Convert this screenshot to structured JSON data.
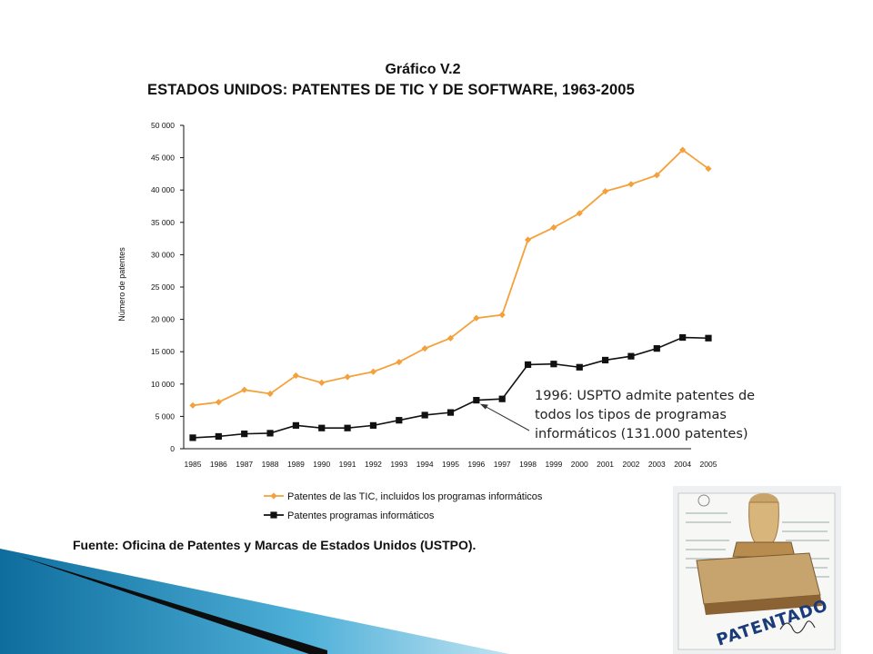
{
  "chart_data": {
    "type": "line",
    "title": "Gráfico V.2",
    "subtitle": "ESTADOS UNIDOS: PATENTES DE TIC Y DE SOFTWARE, 1963-2005",
    "ylabel": "Número de patentes",
    "xlabel": "",
    "ylim": [
      0,
      50000
    ],
    "yticks": [
      0,
      5000,
      10000,
      15000,
      20000,
      25000,
      30000,
      35000,
      40000,
      45000,
      50000
    ],
    "ytick_labels": [
      "0",
      "5 000",
      "10 000",
      "15 000",
      "20 000",
      "25 000",
      "30 000",
      "35 000",
      "40 000",
      "45 000",
      "50 000"
    ],
    "categories": [
      "1985",
      "1986",
      "1987",
      "1988",
      "1989",
      "1990",
      "1991",
      "1992",
      "1993",
      "1994",
      "1995",
      "1996",
      "1997",
      "1998",
      "1999",
      "2000",
      "2001",
      "2002",
      "2003",
      "2004",
      "2005"
    ],
    "series": [
      {
        "name": "Patentes de las TIC, incluidos los programas informáticos",
        "color": "#f4a13b",
        "marker": "diamond",
        "values": [
          6700,
          7200,
          9100,
          8500,
          11300,
          10200,
          11100,
          11900,
          13400,
          15500,
          17100,
          20200,
          20700,
          32300,
          34200,
          36400,
          39800,
          40900,
          42300,
          46200,
          43300
        ]
      },
      {
        "name": "Patentes programas informáticos",
        "color": "#111111",
        "marker": "square",
        "values": [
          1700,
          1900,
          2300,
          2400,
          3600,
          3200,
          3200,
          3600,
          4400,
          5200,
          5600,
          7500,
          7700,
          13000,
          13100,
          12600,
          13700,
          14300,
          15500,
          17200,
          17100
        ]
      }
    ],
    "grid": false,
    "legend_position": "bottom"
  },
  "annotation": {
    "text": "1996: USPTO admite patentes de todos los tipos de programas informáticos (131.000 patentes)"
  },
  "source": "Fuente: Oficina de Patentes y Marcas de Estados Unidos (USTPO).",
  "stamp": {
    "label": "PATENTADO"
  },
  "theme": {
    "accent_blue": "#1f7fb0",
    "dark_wedge": "#0d0d0d"
  }
}
